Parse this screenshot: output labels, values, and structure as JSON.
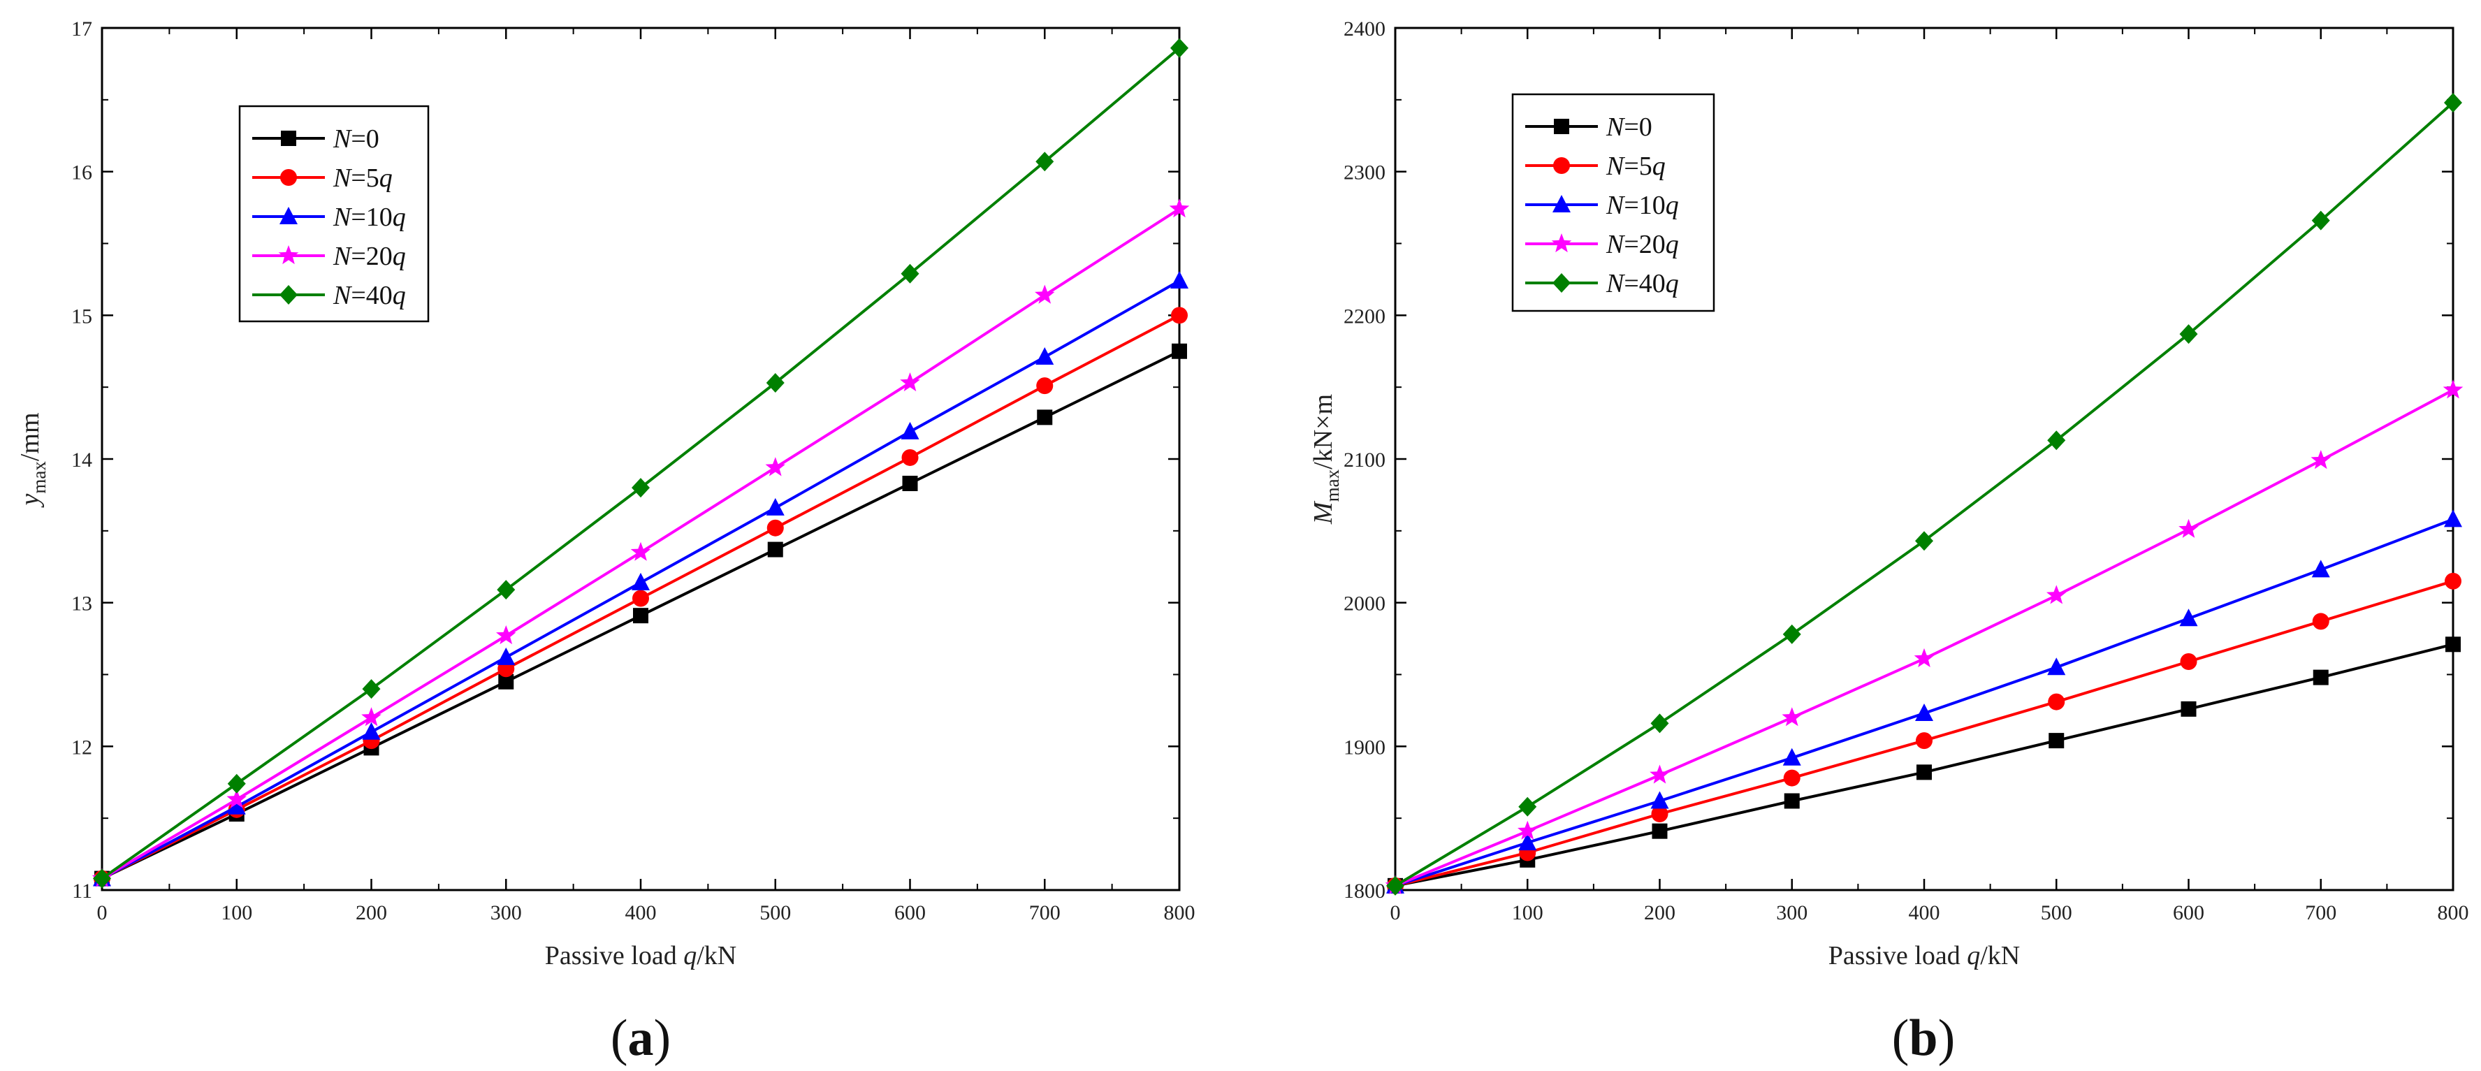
{
  "chart_data": [
    {
      "type": "line",
      "panel": "a",
      "label_open": "(",
      "label_letter": "a",
      "label_close": ")",
      "xlabel": {
        "prefix": "Passive load ",
        "var": "q",
        "suffix": "/kN"
      },
      "ylabel": {
        "var": "y",
        "sub": "max",
        "suffix": "/mm"
      },
      "xlim": [
        0,
        800
      ],
      "ylim": [
        11,
        17
      ],
      "xticks": [
        0,
        100,
        200,
        300,
        400,
        500,
        600,
        700,
        800
      ],
      "yticks": [
        11,
        12,
        13,
        14,
        15,
        16,
        17
      ],
      "x": [
        0,
        100,
        200,
        300,
        400,
        500,
        600,
        700,
        800
      ],
      "legend_position": "upper-left",
      "series": [
        {
          "name": "N=0",
          "var": "N",
          "rest": "=0",
          "q": "",
          "color": "#000000",
          "marker": "square",
          "values": [
            11.08,
            11.53,
            11.99,
            12.45,
            12.91,
            13.37,
            13.83,
            14.29,
            14.75
          ]
        },
        {
          "name": "N=5q",
          "var": "N",
          "rest": "=5",
          "q": "q",
          "color": "#ff0000",
          "marker": "circle",
          "values": [
            11.08,
            11.56,
            12.04,
            12.54,
            13.03,
            13.52,
            14.01,
            14.51,
            15.0
          ]
        },
        {
          "name": "N=10q",
          "var": "N",
          "rest": "=10",
          "q": "q",
          "color": "#0000ff",
          "marker": "triangle",
          "values": [
            11.08,
            11.58,
            12.1,
            12.62,
            13.14,
            13.66,
            14.19,
            14.71,
            15.24
          ]
        },
        {
          "name": "N=20q",
          "var": "N",
          "rest": "=20",
          "q": "q",
          "color": "#ff00ff",
          "marker": "star",
          "values": [
            11.08,
            11.63,
            12.2,
            12.77,
            13.35,
            13.94,
            14.53,
            15.14,
            15.74
          ]
        },
        {
          "name": "N=40q",
          "var": "N",
          "rest": "=40",
          "q": "q",
          "color": "#008000",
          "marker": "diamond",
          "values": [
            11.08,
            11.74,
            12.4,
            13.09,
            13.8,
            14.53,
            15.29,
            16.07,
            16.86
          ]
        }
      ]
    },
    {
      "type": "line",
      "panel": "b",
      "label_open": "(",
      "label_letter": "b",
      "label_close": ")",
      "xlabel": {
        "prefix": "Passive load ",
        "var": "q",
        "suffix": "/kN"
      },
      "ylabel": {
        "var": "M",
        "sub": "max",
        "suffix": "/kN×m"
      },
      "xlim": [
        0,
        800
      ],
      "ylim": [
        1800,
        2400
      ],
      "xticks": [
        0,
        100,
        200,
        300,
        400,
        500,
        600,
        700,
        800
      ],
      "yticks": [
        1800,
        1900,
        2000,
        2100,
        2200,
        2300,
        2400
      ],
      "x": [
        0,
        100,
        200,
        300,
        400,
        500,
        600,
        700,
        800
      ],
      "legend_position": "upper-left",
      "series": [
        {
          "name": "N=0",
          "var": "N",
          "rest": "=0",
          "q": "",
          "color": "#000000",
          "marker": "square",
          "values": [
            1803,
            1821,
            1841,
            1862,
            1882,
            1904,
            1926,
            1948,
            1971
          ]
        },
        {
          "name": "N=5q",
          "var": "N",
          "rest": "=5",
          "q": "q",
          "color": "#ff0000",
          "marker": "circle",
          "values": [
            1803,
            1826,
            1853,
            1878,
            1904,
            1931,
            1959,
            1987,
            2015
          ]
        },
        {
          "name": "N=10q",
          "var": "N",
          "rest": "=10",
          "q": "q",
          "color": "#0000ff",
          "marker": "triangle",
          "values": [
            1803,
            1833,
            1862,
            1892,
            1923,
            1955,
            1989,
            2023,
            2058
          ]
        },
        {
          "name": "N=20q",
          "var": "N",
          "rest": "=20",
          "q": "q",
          "color": "#ff00ff",
          "marker": "star",
          "values": [
            1803,
            1841,
            1880,
            1920,
            1961,
            2005,
            2051,
            2099,
            2148
          ]
        },
        {
          "name": "N=40q",
          "var": "N",
          "rest": "=40",
          "q": "q",
          "color": "#008000",
          "marker": "diamond",
          "values": [
            1803,
            1858,
            1916,
            1978,
            2043,
            2113,
            2187,
            2266,
            2348
          ]
        }
      ]
    }
  ]
}
